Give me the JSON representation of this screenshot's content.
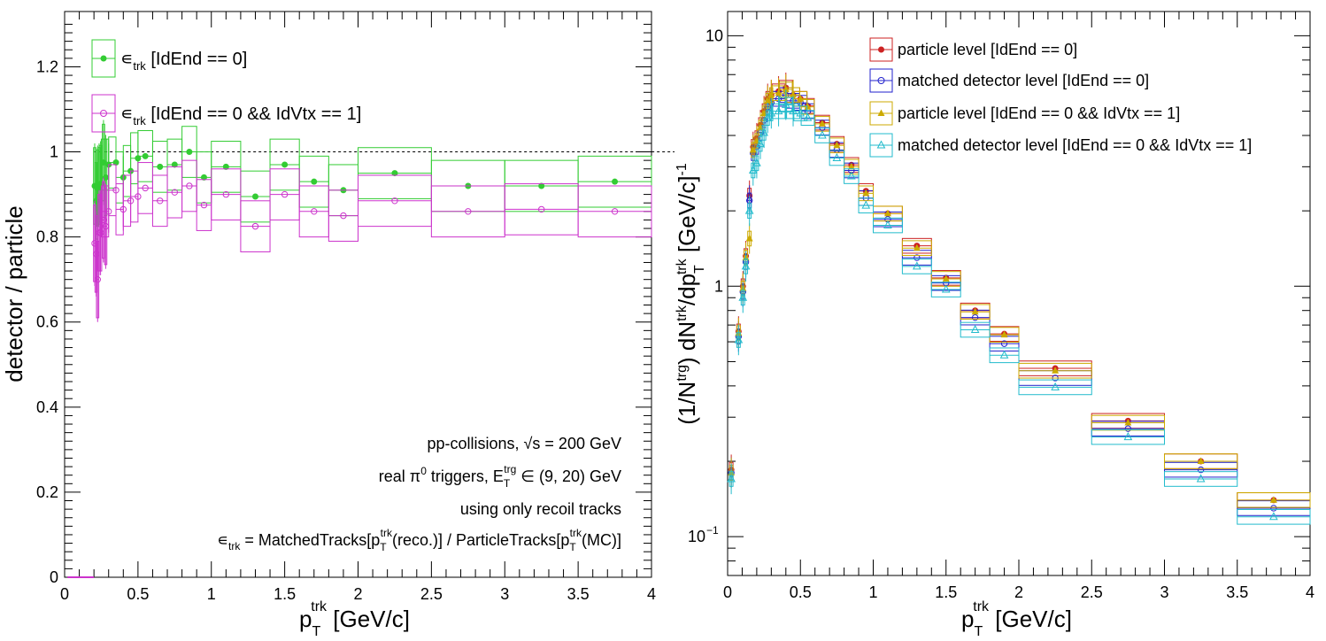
{
  "colors": {
    "eff_all": "#33cc33",
    "eff_vtx": "#cc33cc",
    "particle": "#cc2222",
    "matched": "#2222cc",
    "particle_vtx": "#ccaa00",
    "matched_vtx": "#22bbcc"
  },
  "left": {
    "ylabel": "detector / particle",
    "xlabel_main": "p",
    "xlabel_sub": "T",
    "xlabel_sup": "trk",
    "xlabel_unit": " [GeV/c]",
    "legend": [
      {
        "eps": "∊",
        "sub": "trk",
        "text": " [IdEnd == 0]"
      },
      {
        "eps": "∊",
        "sub": "trk",
        "text": " [IdEnd == 0 && IdVtx == 1]"
      }
    ],
    "notes": {
      "line1_a": "pp-collisions, ",
      "line1_sqrt": "√s",
      "line1_b": " = 200 GeV",
      "line2_a": "real π",
      "line2_zero": "0",
      "line2_b": " triggers, E",
      "line2_sub": "T",
      "line2_sup": "trg",
      "line2_c": " ∈ (9, 20) GeV",
      "line3": "using only recoil tracks",
      "line4_a": "∊",
      "line4_sub1": "trk",
      "line4_b": " = MatchedTracks[p",
      "line4_sub2": "T",
      "line4_sup2": "trk",
      "line4_c": "(reco.)] / ParticleTracks[p",
      "line4_sub3": "T",
      "line4_sup3": "trk",
      "line4_d": "(MC)]"
    },
    "x_ticks": [
      "0",
      "0.5",
      "1",
      "1.5",
      "2",
      "2.5",
      "3",
      "3.5",
      "4"
    ],
    "y_ticks": [
      "0",
      "0.2",
      "0.4",
      "0.6",
      "0.8",
      "1",
      "1.2"
    ]
  },
  "right": {
    "ylabel_a": "(1/N",
    "ylabel_sup1": "trg",
    "ylabel_b": ") dN",
    "ylabel_sup2": "trk",
    "ylabel_c": "/dp",
    "ylabel_sub3": "T",
    "ylabel_sup3": "trk",
    "ylabel_d": " [GeV/c]",
    "ylabel_sup4": "-1",
    "xlabel_main": "p",
    "xlabel_sub": "T",
    "xlabel_sup": "trk",
    "xlabel_unit": " [GeV/c]",
    "legend": [
      "particle level [IdEnd == 0]",
      "matched detector level [IdEnd == 0]",
      "particle level [IdEnd == 0 && IdVtx == 1]",
      "matched detector level [IdEnd == 0 && IdVtx == 1]"
    ],
    "x_ticks": [
      "0",
      "0.5",
      "1",
      "1.5",
      "2",
      "2.5",
      "3",
      "3.5",
      "4"
    ],
    "y_tick_10": "10",
    "y_tick_1": "1",
    "y_tick_01_base": "10",
    "y_tick_01_exp": "−1"
  },
  "chart_data": [
    {
      "type": "scatter",
      "xlabel": "p_T^trk [GeV/c]",
      "ylabel": "detector / particle",
      "xlim": [
        0,
        4
      ],
      "ylim": [
        0,
        1.33
      ],
      "reference_line": 1.0,
      "bins": [
        [
          0.2,
          0.25
        ],
        [
          0.25,
          0.3
        ],
        [
          0.3,
          0.35
        ],
        [
          0.35,
          0.4
        ],
        [
          0.4,
          0.45
        ],
        [
          0.45,
          0.5
        ],
        [
          0.5,
          0.6
        ],
        [
          0.6,
          0.7
        ],
        [
          0.7,
          0.8
        ],
        [
          0.8,
          0.9
        ],
        [
          0.9,
          1.0
        ],
        [
          1.0,
          1.2
        ],
        [
          1.2,
          1.4
        ],
        [
          1.4,
          1.6
        ],
        [
          1.6,
          1.8
        ],
        [
          1.8,
          2.0
        ],
        [
          2.0,
          2.5
        ],
        [
          2.5,
          3.0
        ],
        [
          3.0,
          3.5
        ],
        [
          3.5,
          4.0
        ]
      ],
      "series": [
        {
          "name": "∊_trk [IdEnd == 0]",
          "marker": "filled-circle",
          "points": [
            [
              0.205,
              0.92
            ],
            [
              0.215,
              0.885
            ],
            [
              0.225,
              0.915
            ],
            [
              0.235,
              0.92
            ],
            [
              0.245,
              0.925
            ],
            [
              0.265,
              0.975
            ],
            [
              0.28,
              0.94
            ],
            [
              0.3,
              0.97
            ],
            [
              0.35,
              0.975
            ],
            [
              0.4,
              0.94
            ],
            [
              0.45,
              0.955
            ],
            [
              0.5,
              0.985
            ],
            [
              0.55,
              0.99
            ],
            [
              0.65,
              0.965
            ],
            [
              0.75,
              0.97
            ],
            [
              0.85,
              1.0
            ],
            [
              0.95,
              0.94
            ],
            [
              1.1,
              0.965
            ],
            [
              1.3,
              0.895
            ],
            [
              1.5,
              0.97
            ],
            [
              1.7,
              0.93
            ],
            [
              1.9,
              0.91
            ],
            [
              2.25,
              0.95
            ],
            [
              2.75,
              0.92
            ],
            [
              3.25,
              0.92
            ],
            [
              3.75,
              0.93
            ]
          ]
        },
        {
          "name": "∊_trk [IdEnd == 0 && IdVtx == 1]",
          "marker": "open-circle",
          "points": [
            [
              0.205,
              0.785
            ],
            [
              0.215,
              0.76
            ],
            [
              0.225,
              0.7
            ],
            [
              0.235,
              0.81
            ],
            [
              0.245,
              0.81
            ],
            [
              0.265,
              0.84
            ],
            [
              0.28,
              0.825
            ],
            [
              0.3,
              0.86
            ],
            [
              0.35,
              0.91
            ],
            [
              0.4,
              0.865
            ],
            [
              0.45,
              0.885
            ],
            [
              0.5,
              0.895
            ],
            [
              0.55,
              0.915
            ],
            [
              0.65,
              0.885
            ],
            [
              0.75,
              0.905
            ],
            [
              0.85,
              0.92
            ],
            [
              0.95,
              0.875
            ],
            [
              1.1,
              0.9
            ],
            [
              1.3,
              0.825
            ],
            [
              1.5,
              0.9
            ],
            [
              1.7,
              0.86
            ],
            [
              1.9,
              0.85
            ],
            [
              2.25,
              0.885
            ],
            [
              2.75,
              0.86
            ],
            [
              3.25,
              0.865
            ],
            [
              3.75,
              0.86
            ]
          ]
        }
      ]
    },
    {
      "type": "scatter",
      "xlabel": "p_T^trk [GeV/c]",
      "ylabel": "(1/N^trg) dN^trk/dp_T^trk [GeV/c]^-1",
      "xlim": [
        0,
        4
      ],
      "ylim": [
        0.07,
        12.5
      ],
      "yscale": "log",
      "series": [
        {
          "name": "particle level [IdEnd == 0]",
          "marker": "filled-circle",
          "points": [
            [
              0.025,
              0.185
            ],
            [
              0.075,
              0.66
            ],
            [
              0.105,
              1.0
            ],
            [
              0.125,
              1.32
            ],
            [
              0.15,
              2.3
            ],
            [
              0.175,
              3.6
            ],
            [
              0.2,
              3.9
            ],
            [
              0.225,
              4.4
            ],
            [
              0.25,
              5.0
            ],
            [
              0.275,
              5.6
            ],
            [
              0.3,
              5.8
            ],
            [
              0.35,
              6.0
            ],
            [
              0.4,
              6.2
            ],
            [
              0.45,
              5.8
            ],
            [
              0.5,
              5.6
            ],
            [
              0.55,
              5.25
            ],
            [
              0.65,
              4.5
            ],
            [
              0.75,
              3.7
            ],
            [
              0.85,
              3.05
            ],
            [
              0.95,
              2.4
            ],
            [
              1.1,
              1.95
            ],
            [
              1.3,
              1.45
            ],
            [
              1.5,
              1.08
            ],
            [
              1.7,
              0.8
            ],
            [
              1.9,
              0.645
            ],
            [
              2.25,
              0.47
            ],
            [
              2.75,
              0.29
            ],
            [
              3.25,
              0.2
            ],
            [
              3.75,
              0.14
            ]
          ]
        },
        {
          "name": "matched detector level [IdEnd == 0]",
          "marker": "open-circle",
          "points": [
            [
              0.025,
              0.18
            ],
            [
              0.075,
              0.63
            ],
            [
              0.105,
              0.95
            ],
            [
              0.125,
              1.25
            ],
            [
              0.15,
              2.2
            ],
            [
              0.175,
              3.4
            ],
            [
              0.2,
              3.6
            ],
            [
              0.225,
              4.1
            ],
            [
              0.25,
              4.6
            ],
            [
              0.275,
              5.2
            ],
            [
              0.3,
              5.4
            ],
            [
              0.35,
              5.6
            ],
            [
              0.4,
              5.8
            ],
            [
              0.45,
              5.5
            ],
            [
              0.5,
              5.4
            ],
            [
              0.55,
              5.0
            ],
            [
              0.65,
              4.3
            ],
            [
              0.75,
              3.5
            ],
            [
              0.85,
              2.9
            ],
            [
              0.95,
              2.25
            ],
            [
              1.1,
              1.85
            ],
            [
              1.3,
              1.3
            ],
            [
              1.5,
              1.03
            ],
            [
              1.7,
              0.75
            ],
            [
              1.9,
              0.59
            ],
            [
              2.25,
              0.43
            ],
            [
              2.75,
              0.27
            ],
            [
              3.25,
              0.185
            ],
            [
              3.75,
              0.13
            ]
          ]
        },
        {
          "name": "particle level [IdEnd == 0 && IdVtx == 1]",
          "marker": "filled-triangle",
          "points": [
            [
              0.025,
              0.18
            ],
            [
              0.075,
              0.65
            ],
            [
              0.105,
              0.98
            ],
            [
              0.125,
              1.3
            ],
            [
              0.15,
              1.55
            ],
            [
              0.175,
              3.5
            ],
            [
              0.2,
              3.8
            ],
            [
              0.225,
              4.3
            ],
            [
              0.25,
              4.9
            ],
            [
              0.275,
              5.5
            ],
            [
              0.3,
              5.8
            ],
            [
              0.35,
              5.9
            ],
            [
              0.4,
              6.1
            ],
            [
              0.45,
              5.8
            ],
            [
              0.5,
              5.6
            ],
            [
              0.55,
              5.2
            ],
            [
              0.65,
              4.45
            ],
            [
              0.75,
              3.65
            ],
            [
              0.85,
              3.0
            ],
            [
              0.95,
              2.35
            ],
            [
              1.1,
              1.95
            ],
            [
              1.3,
              1.42
            ],
            [
              1.5,
              1.07
            ],
            [
              1.7,
              0.79
            ],
            [
              1.9,
              0.64
            ],
            [
              2.25,
              0.46
            ],
            [
              2.75,
              0.285
            ],
            [
              3.25,
              0.2
            ],
            [
              3.75,
              0.14
            ]
          ]
        },
        {
          "name": "matched detector level [IdEnd == 0 && IdVtx == 1]",
          "marker": "open-triangle",
          "points": [
            [
              0.025,
              0.17
            ],
            [
              0.075,
              0.61
            ],
            [
              0.105,
              0.9
            ],
            [
              0.125,
              1.2
            ],
            [
              0.15,
              2.0
            ],
            [
              0.175,
              2.9
            ],
            [
              0.2,
              3.1
            ],
            [
              0.225,
              3.7
            ],
            [
              0.25,
              4.1
            ],
            [
              0.275,
              4.7
            ],
            [
              0.3,
              4.9
            ],
            [
              0.35,
              5.0
            ],
            [
              0.4,
              5.3
            ],
            [
              0.45,
              5.0
            ],
            [
              0.5,
              4.9
            ],
            [
              0.55,
              4.7
            ],
            [
              0.65,
              4.0
            ],
            [
              0.75,
              3.25
            ],
            [
              0.85,
              2.75
            ],
            [
              0.95,
              2.1
            ],
            [
              1.1,
              1.75
            ],
            [
              1.3,
              1.2
            ],
            [
              1.5,
              0.97
            ],
            [
              1.7,
              0.67
            ],
            [
              1.9,
              0.53
            ],
            [
              2.25,
              0.395
            ],
            [
              2.75,
              0.25
            ],
            [
              3.25,
              0.17
            ],
            [
              3.75,
              0.12
            ]
          ]
        }
      ]
    }
  ]
}
